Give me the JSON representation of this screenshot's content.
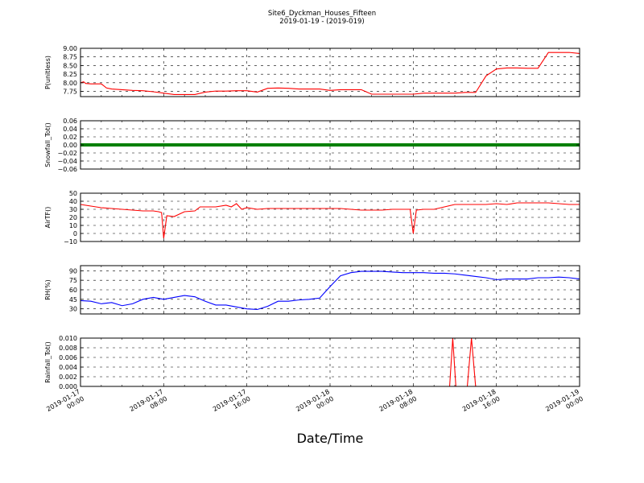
{
  "figure": {
    "title_line1": "Site6_Dyckman_Houses_Fifteen",
    "title_line2": "2019-01-19 - (2019-019)",
    "xlabel": "Date/Time"
  },
  "chart_data": [
    {
      "type": "line",
      "ylabel": "P(unitless)",
      "ylim": [
        7.6,
        9.0
      ],
      "yticks": [
        "7.75",
        "8.00",
        "8.25",
        "8.50",
        "8.75",
        "9.00"
      ],
      "ytick_values": [
        7.75,
        8.0,
        8.25,
        8.5,
        8.75,
        9.0
      ],
      "grid": true,
      "series": [
        {
          "color": "#ff0000",
          "x": [
            0,
            0.3,
            0.5,
            1,
            1.5,
            2,
            2.5,
            3,
            4,
            5,
            6,
            7,
            8,
            9,
            10,
            11,
            12,
            13,
            14,
            15,
            16,
            17,
            18,
            19,
            20,
            21,
            22,
            23,
            24,
            25,
            26,
            27,
            28,
            29,
            30,
            31,
            32,
            33,
            34,
            35,
            36,
            37,
            38,
            39,
            40,
            41,
            42,
            43,
            44,
            45,
            46,
            47,
            48
          ],
          "y": [
            8.0,
            8.03,
            7.98,
            7.97,
            7.97,
            7.97,
            7.85,
            7.82,
            7.8,
            7.78,
            7.77,
            7.74,
            7.7,
            7.66,
            7.66,
            7.66,
            7.73,
            7.76,
            7.76,
            7.77,
            7.77,
            7.73,
            7.84,
            7.85,
            7.84,
            7.82,
            7.82,
            7.82,
            7.78,
            7.8,
            7.8,
            7.8,
            7.67,
            7.67,
            7.67,
            7.67,
            7.67,
            7.7,
            7.7,
            7.7,
            7.7,
            7.72,
            7.72,
            8.2,
            8.4,
            8.43,
            8.43,
            8.42,
            8.42,
            8.88,
            8.88,
            8.88,
            8.85
          ]
        }
      ]
    },
    {
      "type": "line",
      "ylabel": "Snowfall_Tot()",
      "ylim": [
        -0.06,
        0.06
      ],
      "yticks": [
        "−0.06",
        "−0.04",
        "−0.02",
        "0.00",
        "0.02",
        "0.04",
        "0.06"
      ],
      "ytick_values": [
        -0.06,
        -0.04,
        -0.02,
        0.0,
        0.02,
        0.04,
        0.06
      ],
      "grid": true,
      "series": [
        {
          "color": "#008000",
          "x": [
            0,
            48
          ],
          "y": [
            0.0,
            0.0
          ]
        }
      ]
    },
    {
      "type": "line",
      "ylabel": "AirTF()",
      "ylim": [
        -10,
        50
      ],
      "yticks": [
        "−10",
        "0",
        "10",
        "20",
        "30",
        "40",
        "50"
      ],
      "ytick_values": [
        -10,
        0,
        10,
        20,
        30,
        40,
        50
      ],
      "grid": true,
      "series": [
        {
          "color": "#ff0000",
          "x": [
            0,
            1,
            2,
            3,
            4,
            5,
            6,
            7,
            7.5,
            7.8,
            8.0,
            8.3,
            9,
            10,
            11,
            11.5,
            12,
            13,
            14,
            14.5,
            15,
            15.5,
            16,
            17,
            18,
            19,
            20,
            21,
            22,
            23,
            24,
            25,
            26,
            27,
            28,
            29,
            30,
            31,
            31.7,
            32,
            32.3,
            33,
            34,
            35,
            36,
            37,
            38,
            39,
            40,
            41,
            42,
            43,
            44,
            45,
            46,
            47,
            48
          ],
          "y": [
            36,
            34,
            32,
            31,
            30,
            29,
            28,
            28,
            27,
            26,
            -6,
            22,
            21,
            27,
            28,
            33,
            33,
            33,
            35,
            33,
            37,
            30,
            32,
            30,
            31,
            31,
            31,
            31,
            31,
            31,
            31,
            31,
            30,
            29,
            29,
            29,
            30,
            30,
            30,
            0,
            29,
            30,
            30,
            33,
            36,
            36,
            36,
            36,
            37,
            36,
            38,
            38,
            38,
            38,
            37,
            36,
            36
          ]
        }
      ]
    },
    {
      "type": "line",
      "ylabel": "RH(%)",
      "ylim": [
        22,
        98
      ],
      "yticks": [
        "30",
        "45",
        "60",
        "75",
        "90"
      ],
      "ytick_values": [
        30,
        45,
        60,
        75,
        90
      ],
      "grid": true,
      "series": [
        {
          "color": "#0000ff",
          "x": [
            0,
            1,
            2,
            3,
            4,
            5,
            6,
            7,
            8,
            9,
            10,
            11,
            12,
            13,
            14,
            15,
            16,
            17,
            18,
            19,
            20,
            21,
            22,
            23,
            24,
            25,
            26,
            27,
            28,
            29,
            30,
            31,
            32,
            33,
            34,
            35,
            36,
            37,
            38,
            39,
            40,
            41,
            42,
            43,
            44,
            45,
            46,
            47,
            48
          ],
          "y": [
            43,
            42,
            38,
            40,
            35,
            38,
            45,
            48,
            45,
            48,
            51,
            49,
            42,
            36,
            36,
            33,
            30,
            29,
            34,
            42,
            42,
            44,
            45,
            47,
            65,
            82,
            87,
            89,
            89,
            89,
            88,
            87,
            87,
            87,
            86,
            86,
            85,
            83,
            81,
            79,
            76,
            77,
            77,
            77,
            79,
            79,
            80,
            79,
            77
          ]
        }
      ]
    },
    {
      "type": "line",
      "ylabel": "Rainfall_Tot()",
      "ylim": [
        0,
        0.01
      ],
      "yticks": [
        "0.000",
        "0.002",
        "0.004",
        "0.006",
        "0.008",
        "0.010"
      ],
      "ytick_values": [
        0,
        0.002,
        0.004,
        0.006,
        0.008,
        0.01
      ],
      "grid": true,
      "series": [
        {
          "color": "#ff0000",
          "x": [
            0,
            35.5,
            35.8,
            36.1,
            37.2,
            37.6,
            38.0,
            48
          ],
          "y": [
            0,
            0,
            0.01,
            0,
            0,
            0.01,
            0,
            0
          ]
        }
      ]
    }
  ],
  "xaxis": {
    "range_hours": [
      0,
      48
    ],
    "ticks": [
      {
        "hours": 0,
        "line1": "2019-01-17",
        "line2": "00:00"
      },
      {
        "hours": 8,
        "line1": "2019-01-17",
        "line2": "08:00"
      },
      {
        "hours": 16,
        "line1": "2019-01-17",
        "line2": "16:00"
      },
      {
        "hours": 24,
        "line1": "2019-01-18",
        "line2": "00:00"
      },
      {
        "hours": 32,
        "line1": "2019-01-18",
        "line2": "08:00"
      },
      {
        "hours": 40,
        "line1": "2019-01-18",
        "line2": "16:00"
      },
      {
        "hours": 48,
        "line1": "2019-01-19",
        "line2": "00:00"
      }
    ]
  }
}
